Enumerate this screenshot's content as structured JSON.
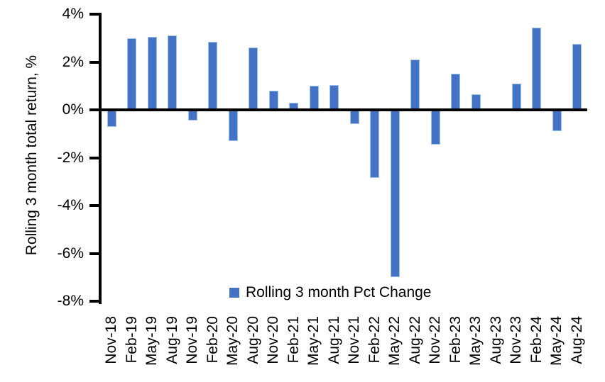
{
  "chart_data": {
    "type": "bar",
    "title": "",
    "ylabel": "Rolling 3 month total return, %",
    "xlabel": "",
    "ylim": [
      -8,
      4
    ],
    "ytick_step": 2,
    "ytick_labels": [
      "4%",
      "2%",
      "0%",
      "-2%",
      "-4%",
      "-6%",
      "-8%"
    ],
    "categories": [
      "Nov-18",
      "Feb-19",
      "May-19",
      "Aug-19",
      "Nov-19",
      "Feb-20",
      "May-20",
      "Aug-20",
      "Nov-20",
      "Feb-21",
      "May-21",
      "Aug-21",
      "Nov-21",
      "Feb-22",
      "May-22",
      "Aug-22",
      "Nov-22",
      "Feb-23",
      "May-23",
      "Aug-23",
      "Nov-23",
      "Feb-24",
      "May-24",
      "Aug-24"
    ],
    "values": [
      -0.7,
      3.0,
      3.05,
      3.1,
      -0.45,
      2.85,
      -1.3,
      2.6,
      0.8,
      0.3,
      1.0,
      1.05,
      -0.6,
      -2.85,
      -7.0,
      2.1,
      -1.45,
      1.5,
      0.65,
      0.0,
      1.1,
      3.45,
      -0.9,
      2.75
    ],
    "series": [
      {
        "name": "Rolling 3 month Pct Change",
        "values": [
          -0.7,
          3.0,
          3.05,
          3.1,
          -0.45,
          2.85,
          -1.3,
          2.6,
          0.8,
          0.3,
          1.0,
          1.05,
          -0.6,
          -2.85,
          -7.0,
          2.1,
          -1.45,
          1.5,
          0.65,
          0.0,
          1.1,
          3.45,
          -0.9,
          2.75
        ]
      }
    ],
    "legend_label": "Rolling 3 month Pct Change",
    "legend_position": "bottom-inside",
    "grid": false,
    "bar_color": "#4472C4",
    "bar_border_color": "#9DC3E6",
    "axis_color": "#000000"
  }
}
